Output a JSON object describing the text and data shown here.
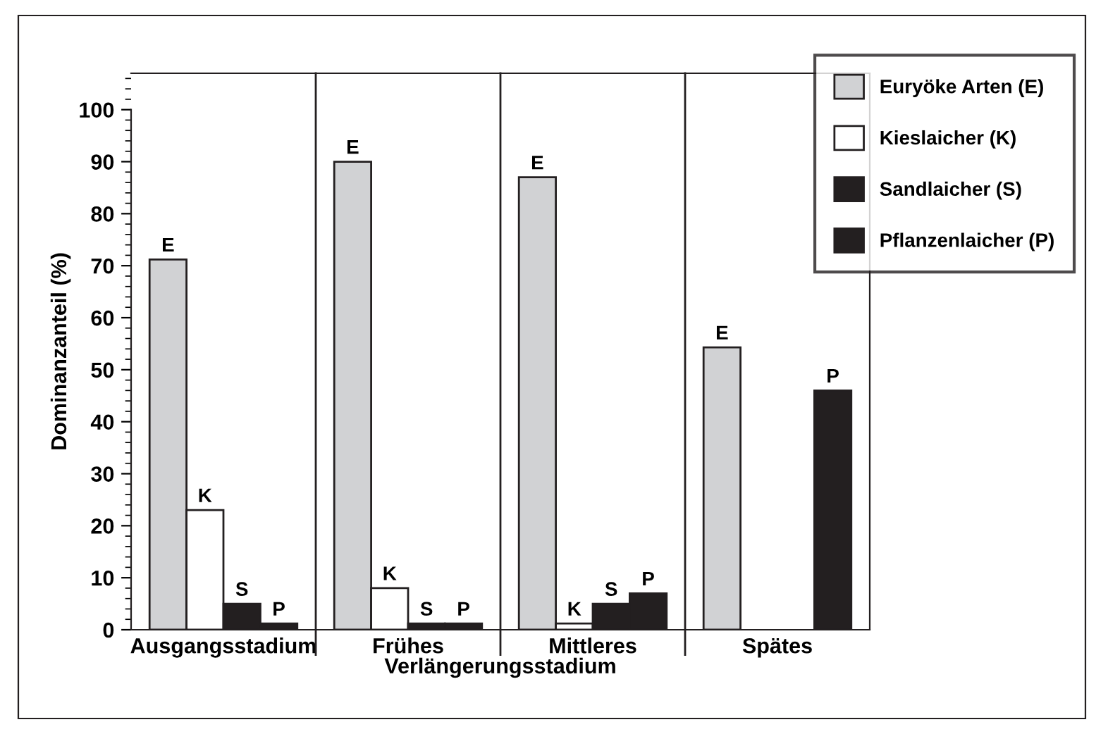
{
  "chart_data": {
    "type": "bar",
    "ylabel": "Dominanzanteil (%)",
    "xlabel": "Verlängerungsstadium",
    "categories": [
      "Ausgangsstadium",
      "Frühes",
      "Mittleres",
      "Spätes"
    ],
    "series": [
      {
        "name": "Euryöke Arten (E)",
        "color": "#d1d2d4",
        "values": [
          71.2,
          90,
          87,
          54.3
        ],
        "value_labels": [
          "E",
          "E",
          "E",
          "E"
        ]
      },
      {
        "name": "Kieslaicher (K)",
        "color": "#ffffff",
        "values": [
          23,
          8,
          1.2,
          null
        ],
        "value_labels": [
          "K",
          "K",
          "K",
          null
        ]
      },
      {
        "name": "Sandlaicher (S)",
        "color": "#231f20",
        "values": [
          5,
          1.2,
          5,
          null
        ],
        "value_labels": [
          "S",
          "S",
          "S",
          null
        ]
      },
      {
        "name": "Pflanzenlaicher (P)",
        "color": "#231f20",
        "values": [
          1.2,
          1.2,
          7,
          46
        ],
        "value_labels": [
          "P",
          "P",
          "P",
          "P"
        ]
      }
    ],
    "ylim": [
      0,
      107
    ],
    "yticks": [
      0,
      10,
      20,
      30,
      40,
      50,
      60,
      70,
      80,
      90,
      100
    ],
    "grid": false,
    "legend": "top right"
  }
}
